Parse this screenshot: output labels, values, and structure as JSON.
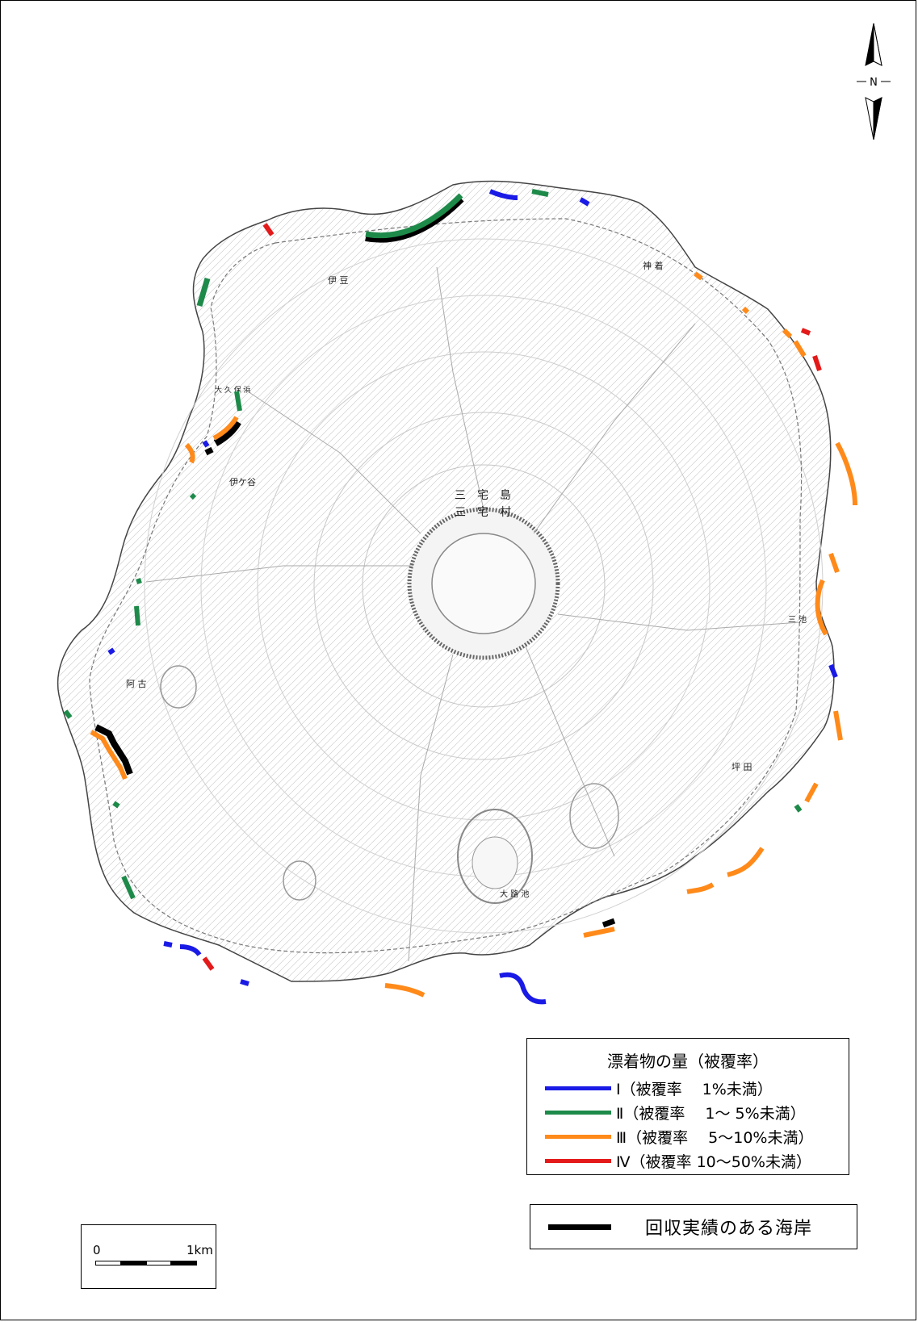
{
  "map": {
    "colors": {
      "class_1": "#1a1ae6",
      "class_2": "#1e8a4a",
      "class_3": "#ff8a1a",
      "class_4": "#e41a1a",
      "recovered": "#000000"
    },
    "compass_label": "N",
    "place_labels": [
      {
        "id": "miyakejima",
        "text": "三　宅　島"
      },
      {
        "id": "miyake-village",
        "text": "三　宅　村"
      },
      {
        "id": "izu",
        "text": "伊 豆"
      },
      {
        "id": "kamitsuki",
        "text": "神 着"
      },
      {
        "id": "igaya",
        "text": "伊ケ谷"
      },
      {
        "id": "ako",
        "text": "阿 古"
      },
      {
        "id": "tsubota",
        "text": "坪 田"
      },
      {
        "id": "oike",
        "text": "大 路 池"
      },
      {
        "id": "okubo",
        "text": "大 久 保 浜"
      },
      {
        "id": "miike",
        "text": "三 池"
      }
    ]
  },
  "legend": {
    "title": "漂着物の量（被覆率）",
    "items": [
      {
        "label": "Ⅰ（被覆率　 1%未満）",
        "color_key": "class_1"
      },
      {
        "label": "Ⅱ（被覆率　 1～ 5%未満）",
        "color_key": "class_2"
      },
      {
        "label": "Ⅲ（被覆率　 5～10%未満）",
        "color_key": "class_3"
      },
      {
        "label": "Ⅳ（被覆率 10～50%未満）",
        "color_key": "class_4"
      }
    ]
  },
  "recovery_legend": {
    "label": "回収実績のある海岸"
  },
  "scale_bar": {
    "start": "0",
    "end": "1km"
  }
}
